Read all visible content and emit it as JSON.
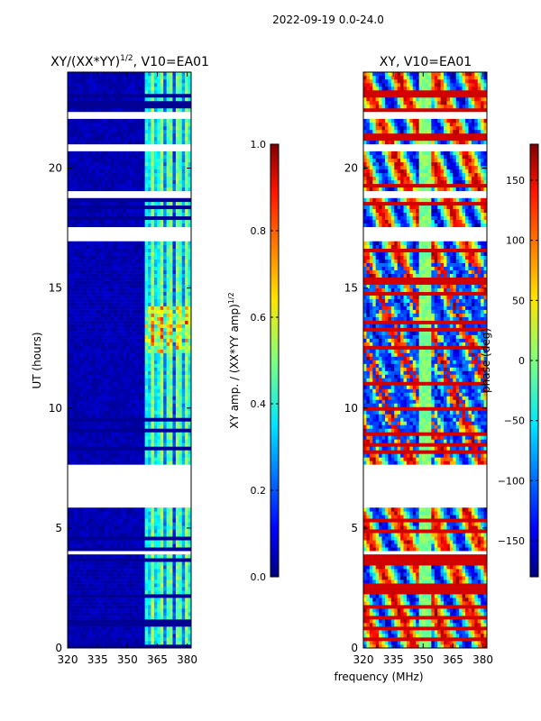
{
  "figure_title": "2022-09-19 0.0-24.0",
  "shared_xlabel": "frequency (MHz)",
  "chart_data": [
    {
      "type": "heatmap",
      "title_main": "XY/(XX*YY)",
      "title_sup": "1/2",
      "title_rest": ", V10=EA01",
      "xlabel": "",
      "ylabel": "UT (hours)",
      "xlim": [
        320,
        382
      ],
      "ylim": [
        0,
        24
      ],
      "xticks": [
        "320",
        "335",
        "350",
        "365",
        "380"
      ],
      "xtick_values": [
        320,
        335,
        350,
        365,
        380
      ],
      "yticks": [
        "0",
        "5",
        "10",
        "15",
        "20"
      ],
      "ytick_values": [
        0,
        5,
        10,
        15,
        20
      ],
      "bright_band_mhz": [
        359,
        382
      ],
      "colorbar": {
        "label_main": "XY amp. / (XX*YY amp)",
        "label_sup": "1/2",
        "range": [
          0,
          1
        ],
        "ticks": [
          "0.0",
          "0.2",
          "0.4",
          "0.6",
          "0.8",
          "1.0"
        ],
        "tick_values": [
          0,
          0.2,
          0.4,
          0.6,
          0.8,
          1.0
        ]
      }
    },
    {
      "type": "heatmap",
      "title_main": "XY, V10=EA01",
      "xlabel": "frequency (MHz)",
      "ylabel": "",
      "xlim": [
        320,
        382
      ],
      "ylim": [
        0,
        24
      ],
      "xticks": [
        "320",
        "335",
        "350",
        "365",
        "380"
      ],
      "xtick_values": [
        320,
        335,
        350,
        365,
        380
      ],
      "yticks": [
        "0",
        "5",
        "10",
        "15",
        "20"
      ],
      "ytick_values": [
        0,
        5,
        10,
        15,
        20
      ],
      "colorbar": {
        "label_main": "phase (deg)",
        "range": [
          -180,
          180
        ],
        "ticks": [
          "−150",
          "−100",
          "−50",
          "0",
          "50",
          "100",
          "150"
        ],
        "tick_values": [
          -150,
          -100,
          -50,
          0,
          50,
          100,
          150
        ]
      }
    }
  ],
  "flagged_gaps_hours": [
    [
      5.8,
      7.6
    ],
    [
      16.9,
      17.5
    ],
    [
      20.7,
      21.0
    ],
    [
      22.0,
      22.4
    ],
    [
      18.8,
      19.1
    ],
    [
      3.9,
      4.1
    ]
  ],
  "colors": {
    "low": "#00007f",
    "mid": "#7fff7f",
    "high": "#7f0000",
    "axis": "#000000",
    "background": "#ffffff"
  }
}
